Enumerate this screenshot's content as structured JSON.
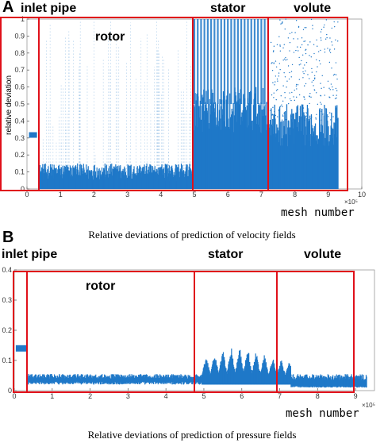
{
  "chart_data": [
    {
      "panel": "A",
      "type": "scatter",
      "xlabel": "mesh number",
      "xlabel_exponent": "×10⁵",
      "ylabel": "relative deviation",
      "caption": "Relative deviations of prediction of velocity fields",
      "xlim": [
        0,
        10
      ],
      "ylim": [
        0,
        1
      ],
      "xticks": [
        "0",
        "1",
        "2",
        "3",
        "4",
        "5",
        "6",
        "7",
        "8",
        "9",
        "10"
      ],
      "yticks": [
        "0",
        "0.1",
        "0.2",
        "0.3",
        "0.4",
        "0.5",
        "0.6",
        "0.7",
        "0.8",
        "0.9",
        "1"
      ],
      "regions": [
        {
          "label": "inlet pipe",
          "x_range": [
            0,
            0.35
          ],
          "baseline_deviation": 0.32
        },
        {
          "label": "rotor",
          "x_range": [
            0.35,
            4.95
          ],
          "typical_deviation": [
            0,
            0.15
          ],
          "max_deviation": 1.0
        },
        {
          "label": "stator",
          "x_range": [
            4.95,
            7.25
          ],
          "typical_deviation": [
            0,
            0.6
          ],
          "max_deviation": 1.0
        },
        {
          "label": "volute",
          "x_range": [
            7.25,
            9.3
          ],
          "typical_deviation": [
            0,
            0.5
          ],
          "max_deviation": 1.0
        }
      ],
      "color": "#1f78c8",
      "grid": false
    },
    {
      "panel": "B",
      "type": "scatter",
      "xlabel": "mesh number",
      "xlabel_exponent": "×10⁵",
      "ylabel": "",
      "caption": "Relative deviations of prediction of pressure fields",
      "xlim": [
        0,
        9.5
      ],
      "ylim": [
        0,
        0.4
      ],
      "xticks": [
        "0",
        "1",
        "2",
        "3",
        "4",
        "5",
        "6",
        "7",
        "8",
        "9"
      ],
      "yticks": [
        "0",
        "0.1",
        "0.2",
        "0.3",
        "0.4"
      ],
      "regions": [
        {
          "label": "inlet pipe",
          "x_range": [
            0,
            0.35
          ],
          "baseline_deviation": 0.14
        },
        {
          "label": "rotor",
          "x_range": [
            0.35,
            4.95
          ],
          "typical_deviation": [
            0.02,
            0.05
          ]
        },
        {
          "label": "stator",
          "x_range": [
            4.95,
            7.3
          ],
          "typical_deviation": [
            0.02,
            0.11
          ]
        },
        {
          "label": "volute",
          "x_range": [
            7.3,
            9.3
          ],
          "typical_deviation": [
            0.01,
            0.05
          ]
        }
      ],
      "color": "#1f78c8",
      "grid": false
    }
  ],
  "panel_letters": [
    "A",
    "B"
  ],
  "highlight_color": "#e0101a"
}
